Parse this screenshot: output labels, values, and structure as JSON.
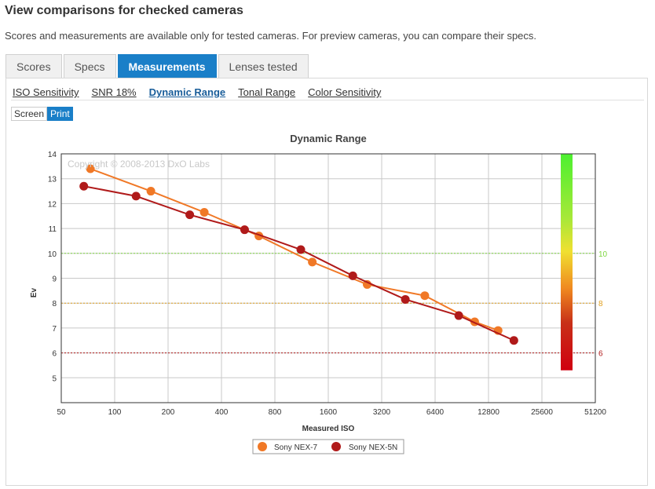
{
  "page": {
    "title": "View comparisons for checked cameras",
    "subtitle": "Scores and measurements are available only for tested cameras. For preview cameras, you can compare their specs."
  },
  "tabs": [
    {
      "label": "Scores",
      "active": false
    },
    {
      "label": "Specs",
      "active": false
    },
    {
      "label": "Measurements",
      "active": true
    },
    {
      "label": "Lenses tested",
      "active": false
    }
  ],
  "subnav": [
    {
      "label": "ISO Sensitivity",
      "active": false
    },
    {
      "label": "SNR 18%",
      "active": false
    },
    {
      "label": "Dynamic Range",
      "active": true
    },
    {
      "label": "Tonal Range",
      "active": false
    },
    {
      "label": "Color Sensitivity",
      "active": false
    }
  ],
  "toggle": [
    {
      "label": "Screen",
      "active": false
    },
    {
      "label": "Print",
      "active": true
    }
  ],
  "colors": {
    "accent": "#1a7fc8",
    "nex7": "#f07826",
    "nex5n": "#b01a1a"
  },
  "chart_data": {
    "type": "line",
    "title": "Dynamic Range",
    "xlabel": "Measured ISO",
    "ylabel": "Ev",
    "copyright": "Copyright © 2008-2013 DxO Labs",
    "x_scale": "log2",
    "xlim": [
      50,
      51200
    ],
    "ylim": [
      4,
      14
    ],
    "x_ticks": [
      "50",
      "100",
      "200",
      "400",
      "800",
      "1600",
      "3200",
      "6400",
      "12800",
      "25600",
      "51200"
    ],
    "y_ticks": [
      "5",
      "6",
      "7",
      "8",
      "9",
      "10",
      "11",
      "12",
      "13",
      "14"
    ],
    "grid": true,
    "reference_lines": [
      {
        "y": 10,
        "label": "10",
        "color": "#7ed640"
      },
      {
        "y": 8,
        "label": "8",
        "color": "#e0a020"
      },
      {
        "y": 6,
        "label": "6",
        "color": "#b01a1a"
      }
    ],
    "scale_bar": {
      "ymin": 5.3,
      "ymax": 14
    },
    "legend_position": "bottom-center",
    "series": [
      {
        "name": "Sony NEX-7",
        "color": "#f07826",
        "points": [
          [
            73,
            13.4
          ],
          [
            160,
            12.5
          ],
          [
            320,
            11.65
          ],
          [
            650,
            10.7
          ],
          [
            1300,
            9.65
          ],
          [
            2650,
            8.75
          ],
          [
            5600,
            8.3
          ],
          [
            10700,
            7.25
          ],
          [
            14500,
            6.9
          ]
        ]
      },
      {
        "name": "Sony NEX-5N",
        "color": "#b01a1a",
        "points": [
          [
            67,
            12.7
          ],
          [
            132,
            12.3
          ],
          [
            265,
            11.55
          ],
          [
            540,
            10.95
          ],
          [
            1120,
            10.15
          ],
          [
            2200,
            9.1
          ],
          [
            4350,
            8.15
          ],
          [
            8700,
            7.5
          ],
          [
            17800,
            6.5
          ]
        ]
      }
    ]
  }
}
